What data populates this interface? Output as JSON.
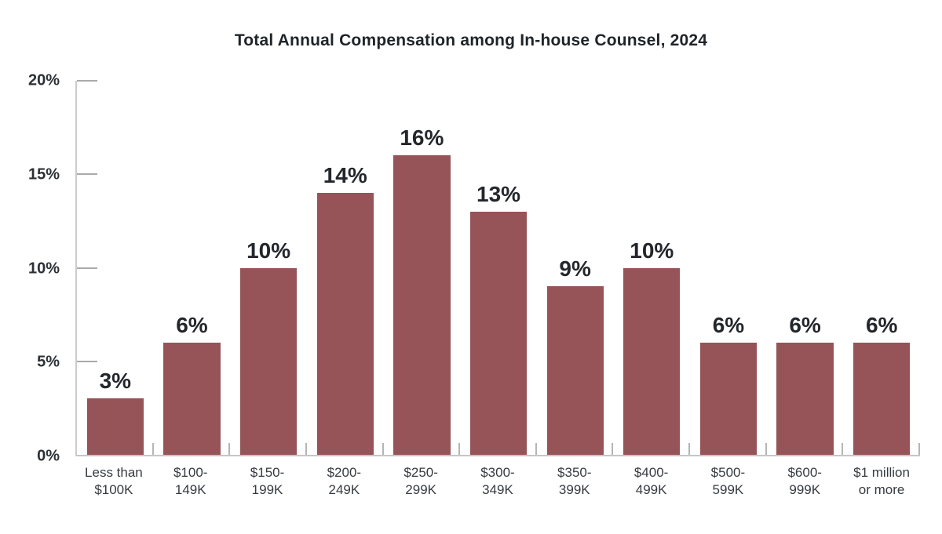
{
  "title": "Total Annual Compensation among In-house Counsel, 2024",
  "colors": {
    "bar": "#965358",
    "axis_line": "#c9c9c9",
    "tick_mark": "#aaaaaa",
    "title_text": "#1f2429",
    "value_label_text": "#23272c",
    "axis_label_text": "#32373c"
  },
  "chart_data": {
    "type": "bar",
    "title": "Total Annual Compensation among In-house Counsel, 2024",
    "categories": [
      [
        "Less than",
        "$100K"
      ],
      [
        "$100-",
        "149K"
      ],
      [
        "$150-",
        "199K"
      ],
      [
        "$200-",
        "249K"
      ],
      [
        "$250-",
        "299K"
      ],
      [
        "$300-",
        "349K"
      ],
      [
        "$350-",
        "399K"
      ],
      [
        "$400-",
        "499K"
      ],
      [
        "$500-",
        "599K"
      ],
      [
        "$600-",
        "999K"
      ],
      [
        "$1 million",
        "or more"
      ]
    ],
    "values": [
      3,
      6,
      10,
      14,
      16,
      13,
      9,
      10,
      6,
      6,
      6
    ],
    "value_labels": [
      "3%",
      "6%",
      "10%",
      "14%",
      "16%",
      "13%",
      "9%",
      "10%",
      "6%",
      "6%",
      "6%"
    ],
    "xlabel": "",
    "ylabel": "",
    "ylim": [
      0,
      20
    ],
    "yticks": [
      0,
      5,
      10,
      15,
      20
    ],
    "ytick_labels": [
      "0%",
      "5%",
      "10%",
      "15%",
      "20%"
    ],
    "grid": "off",
    "legend": "none",
    "bar_color": "#965358"
  }
}
